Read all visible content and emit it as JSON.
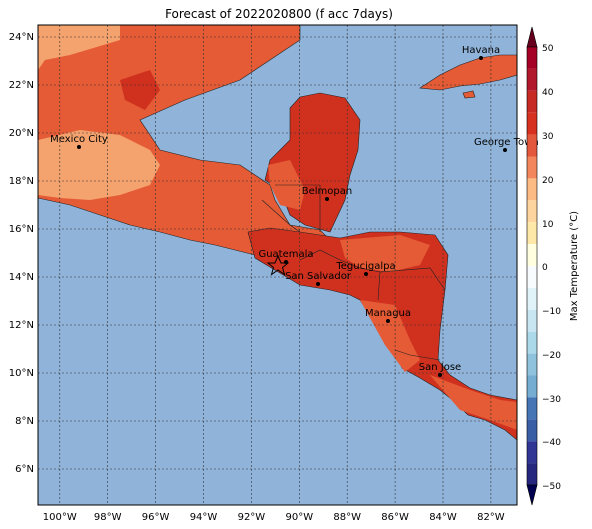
{
  "map": {
    "title": "Forecast of 2022020800 (f acc 7days)",
    "lon_range": [
      -101,
      -81
    ],
    "lat_range": [
      4.5,
      24.5
    ],
    "lon_ticks": [
      "100°W",
      "98°W",
      "96°W",
      "94°W",
      "92°W",
      "90°W",
      "88°W",
      "86°W",
      "84°W",
      "82°W"
    ],
    "lat_ticks": [
      "6°N",
      "8°N",
      "10°N",
      "12°N",
      "14°N",
      "16°N",
      "18°N",
      "20°N",
      "22°N",
      "24°N"
    ],
    "ocean_color": "#8fb3d9",
    "cities": [
      {
        "name": "Havana",
        "lon": -82.4,
        "lat": 23.1
      },
      {
        "name": "Mexico City",
        "lon": -99.1,
        "lat": 19.4
      },
      {
        "name": "George Town",
        "lon": -81.4,
        "lat": 19.3
      },
      {
        "name": "Belmopan",
        "lon": -88.8,
        "lat": 17.25
      },
      {
        "name": "Guatemala",
        "lon": -90.5,
        "lat": 14.6
      },
      {
        "name": "San Salvador",
        "lon": -89.2,
        "lat": 13.7
      },
      {
        "name": "Tegucigalpa",
        "lon": -87.2,
        "lat": 14.1
      },
      {
        "name": "Managua",
        "lon": -86.3,
        "lat": 12.1
      },
      {
        "name": "San Jose",
        "lon": -84.1,
        "lat": 9.9
      }
    ],
    "marker": {
      "symbol": "star",
      "lon": -91.0,
      "lat": 14.45
    }
  },
  "colorbar": {
    "label": "Max Temperature (°C)",
    "ticks": [
      "50",
      "40",
      "30",
      "20",
      "10",
      "0",
      "−10",
      "−20",
      "−30",
      "−40",
      "−50"
    ],
    "colors": [
      "#67001f",
      "#b2182b",
      "#d6301f",
      "#e3573a",
      "#f4865c",
      "#fdbb84",
      "#fee8a8",
      "#ffffe0",
      "#e0f3f8",
      "#abd9e9",
      "#74add1",
      "#4575b4",
      "#313695",
      "#1a1a7a"
    ]
  }
}
